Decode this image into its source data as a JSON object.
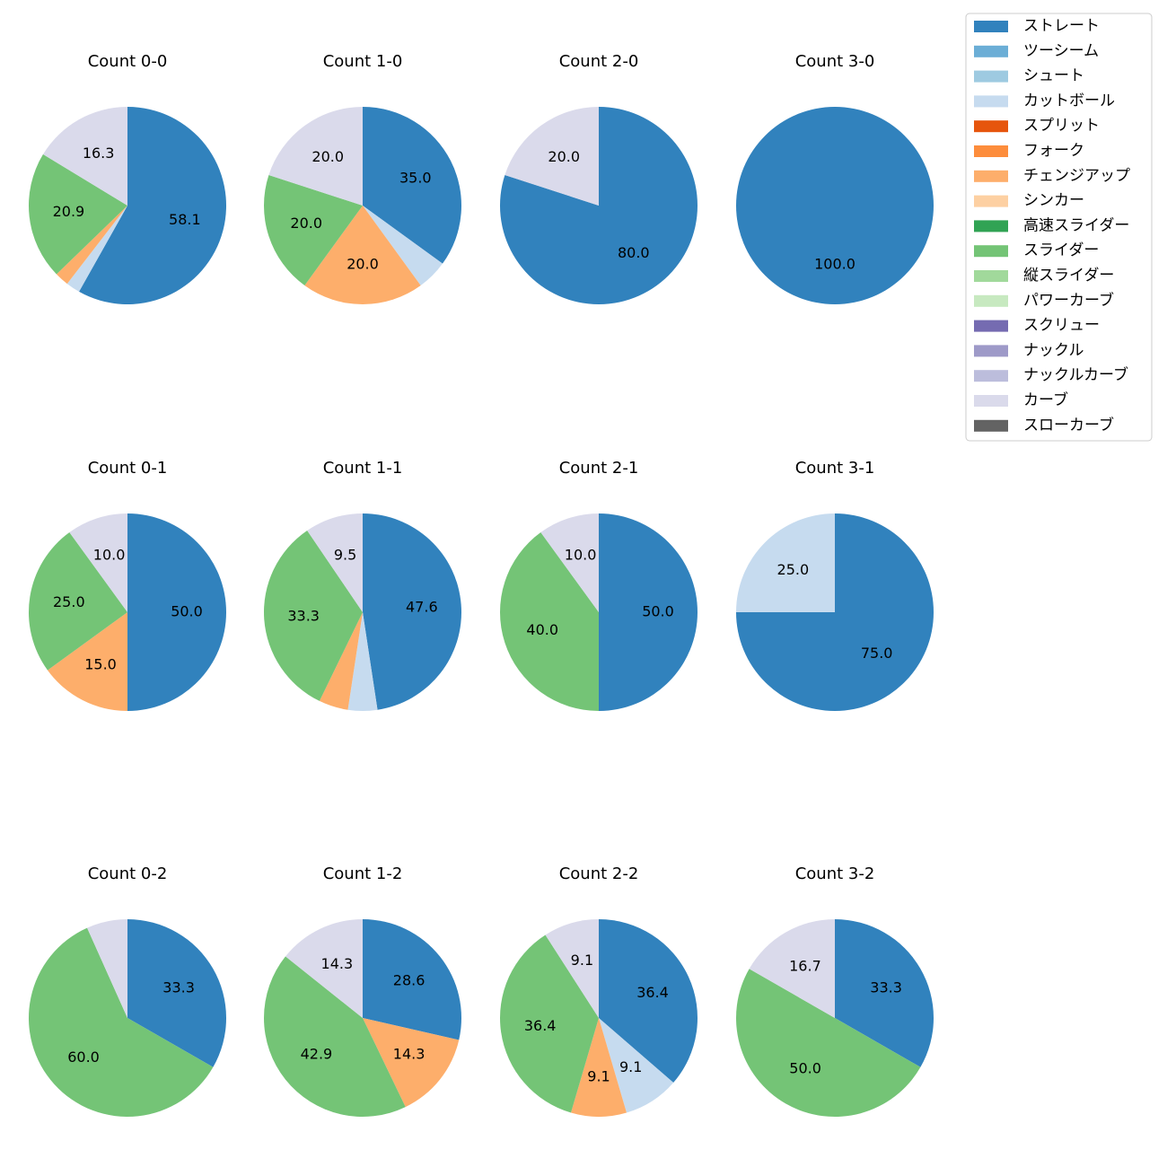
{
  "chart_data": [
    {
      "type": "pie",
      "title": "Count 0-0",
      "categories": [
        "ストレート",
        "カットボール",
        "チェンジアップ",
        "スライダー",
        "カーブ"
      ],
      "values": [
        58.1,
        2.3,
        2.3,
        20.9,
        16.3
      ],
      "value_labels": [
        "58.1",
        null,
        null,
        "20.9",
        "16.3"
      ]
    },
    {
      "type": "pie",
      "title": "Count 1-0",
      "categories": [
        "ストレート",
        "カットボール",
        "チェンジアップ",
        "スライダー",
        "カーブ"
      ],
      "values": [
        35,
        5,
        20,
        20,
        20
      ],
      "value_labels": [
        "35.0",
        null,
        "20.0",
        "20.0",
        "20.0"
      ]
    },
    {
      "type": "pie",
      "title": "Count 2-0",
      "categories": [
        "ストレート",
        "カーブ"
      ],
      "values": [
        80,
        20
      ],
      "value_labels": [
        "80.0",
        "20.0"
      ]
    },
    {
      "type": "pie",
      "title": "Count 3-0",
      "categories": [
        "ストレート"
      ],
      "values": [
        100
      ],
      "value_labels": [
        "100.0"
      ]
    },
    {
      "type": "pie",
      "title": "Count 0-1",
      "categories": [
        "ストレート",
        "チェンジアップ",
        "スライダー",
        "カーブ"
      ],
      "values": [
        50,
        15,
        25,
        10
      ],
      "value_labels": [
        "50.0",
        "15.0",
        "25.0",
        "10.0"
      ]
    },
    {
      "type": "pie",
      "title": "Count 1-1",
      "categories": [
        "ストレート",
        "カットボール",
        "チェンジアップ",
        "スライダー",
        "カーブ"
      ],
      "values": [
        47.6,
        4.8,
        4.8,
        33.3,
        9.5
      ],
      "value_labels": [
        "47.6",
        null,
        null,
        "33.3",
        "9.5"
      ]
    },
    {
      "type": "pie",
      "title": "Count 2-1",
      "categories": [
        "ストレート",
        "スライダー",
        "カーブ"
      ],
      "values": [
        50,
        40,
        10
      ],
      "value_labels": [
        "50.0",
        "40.0",
        "10.0"
      ]
    },
    {
      "type": "pie",
      "title": "Count 3-1",
      "categories": [
        "ストレート",
        "カットボール"
      ],
      "values": [
        75,
        25
      ],
      "value_labels": [
        "75.0",
        "25.0"
      ]
    },
    {
      "type": "pie",
      "title": "Count 0-2",
      "categories": [
        "ストレート",
        "スライダー",
        "カーブ"
      ],
      "values": [
        33.3,
        60,
        6.7
      ],
      "value_labels": [
        "33.3",
        "60.0",
        null
      ]
    },
    {
      "type": "pie",
      "title": "Count 1-2",
      "categories": [
        "ストレート",
        "チェンジアップ",
        "スライダー",
        "カーブ"
      ],
      "values": [
        28.6,
        14.3,
        42.9,
        14.3
      ],
      "value_labels": [
        "28.6",
        "14.3",
        "42.9",
        "14.3"
      ]
    },
    {
      "type": "pie",
      "title": "Count 2-2",
      "categories": [
        "ストレート",
        "カットボール",
        "チェンジアップ",
        "スライダー",
        "カーブ"
      ],
      "values": [
        36.4,
        9.1,
        9.1,
        36.4,
        9.1
      ],
      "value_labels": [
        "36.4",
        "9.1",
        "9.1",
        "36.4",
        "9.1"
      ]
    },
    {
      "type": "pie",
      "title": "Count 3-2",
      "categories": [
        "ストレート",
        "スライダー",
        "カーブ"
      ],
      "values": [
        33.3,
        50,
        16.7
      ],
      "value_labels": [
        "33.3",
        "50.0",
        "16.7"
      ]
    }
  ],
  "legend": [
    {
      "name": "ストレート",
      "color": "#3182bd"
    },
    {
      "name": "ツーシーム",
      "color": "#6baed6"
    },
    {
      "name": "シュート",
      "color": "#9ecae1"
    },
    {
      "name": "カットボール",
      "color": "#c6dbef"
    },
    {
      "name": "スプリット",
      "color": "#e6550d"
    },
    {
      "name": "フォーク",
      "color": "#fd8d3c"
    },
    {
      "name": "チェンジアップ",
      "color": "#fdae6b"
    },
    {
      "name": "シンカー",
      "color": "#fdd0a2"
    },
    {
      "name": "高速スライダー",
      "color": "#31a354"
    },
    {
      "name": "スライダー",
      "color": "#74c476"
    },
    {
      "name": "縦スライダー",
      "color": "#a1d99b"
    },
    {
      "name": "パワーカーブ",
      "color": "#c7e9c0"
    },
    {
      "name": "スクリュー",
      "color": "#756bb1"
    },
    {
      "name": "ナックル",
      "color": "#9e9ac8"
    },
    {
      "name": "ナックルカーブ",
      "color": "#bcbddc"
    },
    {
      "name": "カーブ",
      "color": "#dadaeb"
    },
    {
      "name": "スローカーブ",
      "color": "#636363"
    }
  ]
}
